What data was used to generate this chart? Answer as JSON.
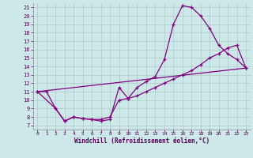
{
  "bg_color": "#cce8e8",
  "line_color": "#800080",
  "grid_color": "#b0c8c8",
  "xlim": [
    -0.5,
    23.5
  ],
  "ylim": [
    6.5,
    21.5
  ],
  "xticks": [
    0,
    1,
    2,
    3,
    4,
    5,
    6,
    7,
    8,
    9,
    10,
    11,
    12,
    13,
    14,
    15,
    16,
    17,
    18,
    19,
    20,
    21,
    22,
    23
  ],
  "yticks": [
    7,
    8,
    9,
    10,
    11,
    12,
    13,
    14,
    15,
    16,
    17,
    18,
    19,
    20,
    21
  ],
  "xlabel": "Windchill (Refroidissement éolien,°C)",
  "line1_x": [
    0,
    1,
    2,
    3,
    4,
    5,
    6,
    7,
    8,
    9,
    10,
    11,
    12,
    13,
    14,
    15,
    16,
    17,
    18,
    19,
    20,
    21,
    22,
    23
  ],
  "line1_y": [
    11.0,
    11.0,
    9.0,
    7.5,
    8.0,
    7.8,
    7.7,
    7.5,
    7.7,
    11.5,
    10.2,
    11.5,
    12.2,
    12.8,
    14.8,
    19.0,
    21.2,
    21.0,
    20.0,
    18.5,
    16.5,
    15.5,
    14.8,
    13.8
  ],
  "line2_x": [
    0,
    2,
    3,
    4,
    5,
    6,
    7,
    8,
    9,
    10,
    11,
    12,
    13,
    14,
    15,
    16,
    17,
    18,
    19,
    20,
    21,
    22,
    23
  ],
  "line2_y": [
    11.0,
    9.0,
    7.5,
    8.0,
    7.8,
    7.7,
    7.7,
    8.0,
    10.0,
    10.2,
    10.5,
    11.0,
    11.5,
    12.0,
    12.5,
    13.0,
    13.5,
    14.2,
    15.0,
    15.5,
    16.2,
    16.5,
    13.8
  ],
  "line3_x": [
    0,
    23
  ],
  "line3_y": [
    11.0,
    13.8
  ],
  "xlabel_fontsize": 5.5,
  "xtick_fontsize": 4.5,
  "ytick_fontsize": 5.0,
  "linewidth": 0.9,
  "markersize": 3.5
}
